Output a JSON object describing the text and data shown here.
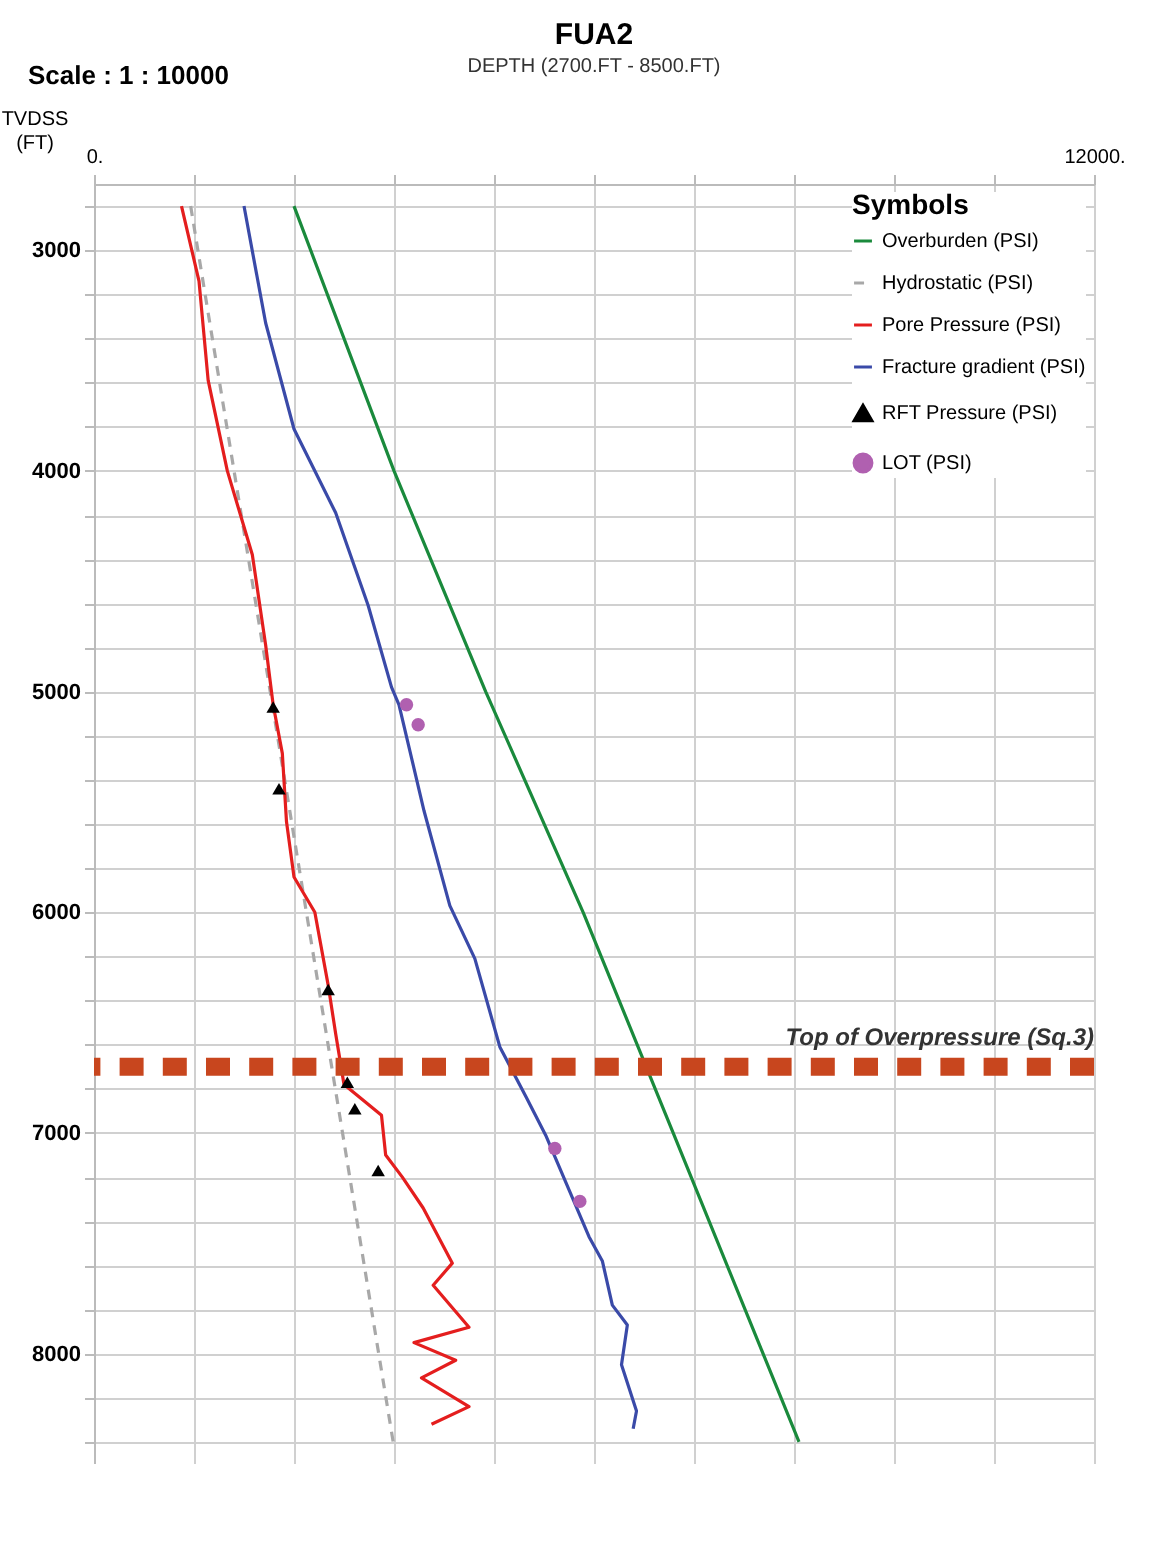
{
  "chart_data": {
    "type": "line",
    "title": "FUA2",
    "subtitle": "DEPTH (2700.FT - 8500.FT)",
    "ylabel": "TVDSS (FT)",
    "legend_title": "Symbols",
    "annotations": [
      "Scale : 1 : 10000"
    ],
    "xlim": [
      0,
      12000
    ],
    "xticks": [
      {
        "value": 0,
        "label": "0."
      },
      {
        "value": 1200,
        "label": null
      },
      {
        "value": 2400,
        "label": null
      },
      {
        "value": 3600,
        "label": null
      },
      {
        "value": 4800,
        "label": null
      },
      {
        "value": 6000,
        "label": null
      },
      {
        "value": 7200,
        "label": null
      },
      {
        "value": 8400,
        "label": null
      },
      {
        "value": 9600,
        "label": null
      },
      {
        "value": 10800,
        "label": null
      },
      {
        "value": 12000,
        "label": "12000."
      }
    ],
    "ylim": [
      8500,
      2700
    ],
    "yticks": [
      {
        "value": 2800,
        "label": null
      },
      3000,
      {
        "value": 3200,
        "label": null
      },
      {
        "value": 3400,
        "label": null
      },
      {
        "value": 3600,
        "label": null
      },
      {
        "value": 3800,
        "label": null
      },
      4000,
      {
        "value": 4200,
        "label": null
      },
      {
        "value": 4400,
        "label": null
      },
      {
        "value": 4600,
        "label": null
      },
      {
        "value": 4800,
        "label": null
      },
      5000,
      {
        "value": 5200,
        "label": null
      },
      {
        "value": 5400,
        "label": null
      },
      {
        "value": 5600,
        "label": null
      },
      {
        "value": 5800,
        "label": null
      },
      6000,
      {
        "value": 6200,
        "label": null
      },
      {
        "value": 6400,
        "label": null
      },
      {
        "value": 6600,
        "label": null
      },
      {
        "value": 6800,
        "label": null
      },
      7000,
      {
        "value": 7200,
        "label": null
      },
      {
        "value": 7400,
        "label": null
      },
      {
        "value": 7600,
        "label": null
      },
      {
        "value": 7800,
        "label": null
      },
      8000,
      {
        "value": 8200,
        "label": null
      },
      {
        "value": 8400,
        "label": null
      }
    ],
    "grid": true,
    "legend": "top right",
    "series": [
      {
        "name": "Overburden (PSI)",
        "type": "line",
        "color": "#1a8a3c",
        "x": [
          2400,
          3600,
          4700,
          5870,
          6950,
          8460
        ],
        "values": [
          2800,
          4000,
          5000,
          6000,
          7000,
          8400
        ]
      },
      {
        "name": "Hydrostatic (PSI)",
        "type": "line",
        "line_style": "dashed",
        "color": "#a8a8a8",
        "x": [
          1160,
          3590
        ],
        "values": [
          2800,
          8400
        ]
      },
      {
        "name": "Pore Pressure (PSI)",
        "type": "line",
        "color": "#e41e1e",
        "x": [
          1050,
          1260,
          1370,
          1600,
          1900,
          2060,
          2150,
          2260,
          2310,
          2400,
          2650,
          2810,
          2900,
          3000,
          3450,
          3500,
          3700,
          3950,
          4300,
          4070,
          4500,
          3840,
          4340,
          3930,
          4500,
          4050
        ],
        "values": [
          2800,
          3140,
          3590,
          4000,
          4380,
          4790,
          5060,
          5280,
          5590,
          5840,
          6000,
          6330,
          6550,
          6780,
          6920,
          7100,
          7200,
          7340,
          7590,
          7690,
          7880,
          7950,
          8030,
          8110,
          8240,
          8320
        ]
      },
      {
        "name": "Fracture gradient (PSI)",
        "type": "line",
        "color": "#3a4aa8",
        "x": [
          1800,
          2060,
          2400,
          2900,
          3290,
          3570,
          3660,
          3960,
          4270,
          4570,
          4870,
          5190,
          5420,
          5940,
          6100,
          6220,
          6400,
          6330,
          6510,
          6470
        ],
        "values": [
          2800,
          3330,
          3810,
          4190,
          4610,
          4980,
          5060,
          5540,
          5970,
          6210,
          6610,
          6840,
          7010,
          7470,
          7580,
          7780,
          7870,
          8050,
          8260,
          8340
        ]
      },
      {
        "name": "RFT Pressure (PSI)",
        "type": "scatter",
        "marker": "triangle",
        "color": "#000000",
        "x": [
          2150,
          2220,
          2810,
          3040,
          3130,
          3410
        ],
        "values": [
          5070,
          5440,
          6350,
          6770,
          6890,
          7170
        ]
      },
      {
        "name": "LOT (PSI)",
        "type": "scatter",
        "marker": "circle",
        "color": "#b060b0",
        "x": [
          3750,
          3890,
          5530,
          5830
        ],
        "values": [
          5060,
          5150,
          7070,
          7310
        ]
      }
    ],
    "ref_lines": [
      {
        "axis": "y",
        "value": 6700,
        "label": "Top of Overpressure (Sq.3)",
        "color": "#c8461e",
        "line_style": "dashed"
      }
    ]
  }
}
